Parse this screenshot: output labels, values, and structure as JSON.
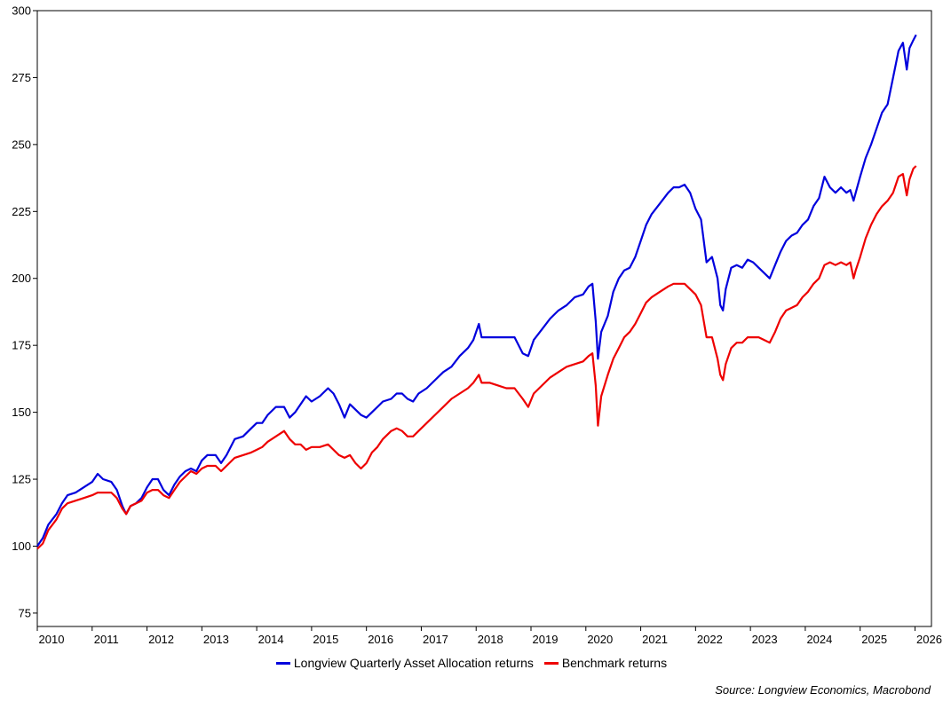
{
  "chart_data": {
    "type": "line",
    "title": "",
    "xlabel": "",
    "ylabel": "",
    "ylim": [
      70,
      300
    ],
    "yticks": [
      75,
      100,
      125,
      150,
      175,
      200,
      225,
      250,
      275,
      300
    ],
    "xlim": [
      2010,
      2026.3
    ],
    "xticks": [
      "2010",
      "2011",
      "2012",
      "2013",
      "2014",
      "2015",
      "2016",
      "2017",
      "2018",
      "2019",
      "2020",
      "2021",
      "2022",
      "2023",
      "2024",
      "2025",
      "2026"
    ],
    "grid": false,
    "legend_position": "bottom",
    "series": [
      {
        "name": "Longview Quarterly Asset Allocation returns",
        "color": "#0000dd",
        "points": [
          [
            2010.0,
            100
          ],
          [
            2010.1,
            103
          ],
          [
            2010.2,
            108
          ],
          [
            2010.35,
            112
          ],
          [
            2010.45,
            116
          ],
          [
            2010.55,
            119
          ],
          [
            2010.7,
            120
          ],
          [
            2010.85,
            122
          ],
          [
            2011.0,
            124
          ],
          [
            2011.1,
            127
          ],
          [
            2011.2,
            125
          ],
          [
            2011.35,
            124
          ],
          [
            2011.45,
            121
          ],
          [
            2011.55,
            115
          ],
          [
            2011.62,
            112
          ],
          [
            2011.7,
            115
          ],
          [
            2011.8,
            116
          ],
          [
            2011.9,
            118
          ],
          [
            2012.0,
            122
          ],
          [
            2012.1,
            125
          ],
          [
            2012.2,
            125
          ],
          [
            2012.3,
            121
          ],
          [
            2012.4,
            119
          ],
          [
            2012.5,
            123
          ],
          [
            2012.6,
            126
          ],
          [
            2012.7,
            128
          ],
          [
            2012.8,
            129
          ],
          [
            2012.9,
            128
          ],
          [
            2013.0,
            132
          ],
          [
            2013.1,
            134
          ],
          [
            2013.25,
            134
          ],
          [
            2013.35,
            131
          ],
          [
            2013.45,
            134
          ],
          [
            2013.6,
            140
          ],
          [
            2013.75,
            141
          ],
          [
            2013.9,
            144
          ],
          [
            2014.0,
            146
          ],
          [
            2014.1,
            146
          ],
          [
            2014.2,
            149
          ],
          [
            2014.35,
            152
          ],
          [
            2014.5,
            152
          ],
          [
            2014.6,
            148
          ],
          [
            2014.7,
            150
          ],
          [
            2014.8,
            153
          ],
          [
            2014.9,
            156
          ],
          [
            2015.0,
            154
          ],
          [
            2015.15,
            156
          ],
          [
            2015.3,
            159
          ],
          [
            2015.4,
            157
          ],
          [
            2015.5,
            153
          ],
          [
            2015.6,
            148
          ],
          [
            2015.7,
            153
          ],
          [
            2015.8,
            151
          ],
          [
            2015.9,
            149
          ],
          [
            2016.0,
            148
          ],
          [
            2016.1,
            150
          ],
          [
            2016.2,
            152
          ],
          [
            2016.3,
            154
          ],
          [
            2016.45,
            155
          ],
          [
            2016.55,
            157
          ],
          [
            2016.65,
            157
          ],
          [
            2016.75,
            155
          ],
          [
            2016.85,
            154
          ],
          [
            2016.95,
            157
          ],
          [
            2017.1,
            159
          ],
          [
            2017.25,
            162
          ],
          [
            2017.4,
            165
          ],
          [
            2017.55,
            167
          ],
          [
            2017.7,
            171
          ],
          [
            2017.85,
            174
          ],
          [
            2017.95,
            177
          ],
          [
            2018.05,
            183
          ],
          [
            2018.1,
            178
          ],
          [
            2018.25,
            178
          ],
          [
            2018.4,
            178
          ],
          [
            2018.55,
            178
          ],
          [
            2018.7,
            178
          ],
          [
            2018.85,
            172
          ],
          [
            2018.95,
            171
          ],
          [
            2019.05,
            177
          ],
          [
            2019.2,
            181
          ],
          [
            2019.35,
            185
          ],
          [
            2019.5,
            188
          ],
          [
            2019.65,
            190
          ],
          [
            2019.8,
            193
          ],
          [
            2019.95,
            194
          ],
          [
            2020.05,
            197
          ],
          [
            2020.12,
            198
          ],
          [
            2020.18,
            184
          ],
          [
            2020.22,
            170
          ],
          [
            2020.28,
            180
          ],
          [
            2020.4,
            186
          ],
          [
            2020.5,
            195
          ],
          [
            2020.6,
            200
          ],
          [
            2020.7,
            203
          ],
          [
            2020.8,
            204
          ],
          [
            2020.9,
            208
          ],
          [
            2021.0,
            214
          ],
          [
            2021.1,
            220
          ],
          [
            2021.2,
            224
          ],
          [
            2021.35,
            228
          ],
          [
            2021.5,
            232
          ],
          [
            2021.6,
            234
          ],
          [
            2021.7,
            234
          ],
          [
            2021.8,
            235
          ],
          [
            2021.9,
            232
          ],
          [
            2022.0,
            226
          ],
          [
            2022.1,
            222
          ],
          [
            2022.15,
            214
          ],
          [
            2022.2,
            206
          ],
          [
            2022.3,
            208
          ],
          [
            2022.4,
            200
          ],
          [
            2022.45,
            190
          ],
          [
            2022.5,
            188
          ],
          [
            2022.55,
            196
          ],
          [
            2022.65,
            204
          ],
          [
            2022.75,
            205
          ],
          [
            2022.85,
            204
          ],
          [
            2022.95,
            207
          ],
          [
            2023.05,
            206
          ],
          [
            2023.15,
            204
          ],
          [
            2023.25,
            202
          ],
          [
            2023.35,
            200
          ],
          [
            2023.45,
            205
          ],
          [
            2023.55,
            210
          ],
          [
            2023.65,
            214
          ],
          [
            2023.75,
            216
          ],
          [
            2023.85,
            217
          ],
          [
            2023.95,
            220
          ],
          [
            2024.05,
            222
          ],
          [
            2024.15,
            227
          ],
          [
            2024.25,
            230
          ],
          [
            2024.35,
            238
          ],
          [
            2024.45,
            234
          ],
          [
            2024.55,
            232
          ],
          [
            2024.65,
            234
          ],
          [
            2024.75,
            232
          ],
          [
            2024.82,
            233
          ],
          [
            2024.88,
            229
          ],
          [
            2024.92,
            232
          ],
          [
            2025.0,
            238
          ],
          [
            2025.1,
            245
          ],
          [
            2025.2,
            250
          ],
          [
            2025.3,
            256
          ],
          [
            2025.4,
            262
          ],
          [
            2025.5,
            265
          ],
          [
            2025.6,
            275
          ],
          [
            2025.7,
            285
          ],
          [
            2025.78,
            288
          ],
          [
            2025.85,
            278
          ],
          [
            2025.9,
            286
          ],
          [
            2025.97,
            289
          ],
          [
            2026.02,
            291
          ]
        ]
      },
      {
        "name": "Benchmark returns",
        "color": "#ee0000",
        "points": [
          [
            2010.0,
            99
          ],
          [
            2010.1,
            101
          ],
          [
            2010.2,
            106
          ],
          [
            2010.35,
            110
          ],
          [
            2010.45,
            114
          ],
          [
            2010.55,
            116
          ],
          [
            2010.7,
            117
          ],
          [
            2010.85,
            118
          ],
          [
            2011.0,
            119
          ],
          [
            2011.1,
            120
          ],
          [
            2011.2,
            120
          ],
          [
            2011.35,
            120
          ],
          [
            2011.45,
            118
          ],
          [
            2011.55,
            114
          ],
          [
            2011.62,
            112
          ],
          [
            2011.7,
            115
          ],
          [
            2011.8,
            116
          ],
          [
            2011.9,
            117
          ],
          [
            2012.0,
            120
          ],
          [
            2012.1,
            121
          ],
          [
            2012.2,
            121
          ],
          [
            2012.3,
            119
          ],
          [
            2012.4,
            118
          ],
          [
            2012.5,
            121
          ],
          [
            2012.6,
            124
          ],
          [
            2012.7,
            126
          ],
          [
            2012.8,
            128
          ],
          [
            2012.9,
            127
          ],
          [
            2013.0,
            129
          ],
          [
            2013.1,
            130
          ],
          [
            2013.25,
            130
          ],
          [
            2013.35,
            128
          ],
          [
            2013.45,
            130
          ],
          [
            2013.6,
            133
          ],
          [
            2013.75,
            134
          ],
          [
            2013.9,
            135
          ],
          [
            2014.0,
            136
          ],
          [
            2014.1,
            137
          ],
          [
            2014.2,
            139
          ],
          [
            2014.35,
            141
          ],
          [
            2014.5,
            143
          ],
          [
            2014.6,
            140
          ],
          [
            2014.7,
            138
          ],
          [
            2014.8,
            138
          ],
          [
            2014.9,
            136
          ],
          [
            2015.0,
            137
          ],
          [
            2015.15,
            137
          ],
          [
            2015.3,
            138
          ],
          [
            2015.4,
            136
          ],
          [
            2015.5,
            134
          ],
          [
            2015.6,
            133
          ],
          [
            2015.7,
            134
          ],
          [
            2015.8,
            131
          ],
          [
            2015.9,
            129
          ],
          [
            2016.0,
            131
          ],
          [
            2016.1,
            135
          ],
          [
            2016.2,
            137
          ],
          [
            2016.3,
            140
          ],
          [
            2016.45,
            143
          ],
          [
            2016.55,
            144
          ],
          [
            2016.65,
            143
          ],
          [
            2016.75,
            141
          ],
          [
            2016.85,
            141
          ],
          [
            2016.95,
            143
          ],
          [
            2017.1,
            146
          ],
          [
            2017.25,
            149
          ],
          [
            2017.4,
            152
          ],
          [
            2017.55,
            155
          ],
          [
            2017.7,
            157
          ],
          [
            2017.85,
            159
          ],
          [
            2017.95,
            161
          ],
          [
            2018.05,
            164
          ],
          [
            2018.1,
            161
          ],
          [
            2018.25,
            161
          ],
          [
            2018.4,
            160
          ],
          [
            2018.55,
            159
          ],
          [
            2018.7,
            159
          ],
          [
            2018.85,
            155
          ],
          [
            2018.95,
            152
          ],
          [
            2019.05,
            157
          ],
          [
            2019.2,
            160
          ],
          [
            2019.35,
            163
          ],
          [
            2019.5,
            165
          ],
          [
            2019.65,
            167
          ],
          [
            2019.8,
            168
          ],
          [
            2019.95,
            169
          ],
          [
            2020.05,
            171
          ],
          [
            2020.12,
            172
          ],
          [
            2020.18,
            160
          ],
          [
            2020.22,
            145
          ],
          [
            2020.28,
            156
          ],
          [
            2020.4,
            164
          ],
          [
            2020.5,
            170
          ],
          [
            2020.6,
            174
          ],
          [
            2020.7,
            178
          ],
          [
            2020.8,
            180
          ],
          [
            2020.9,
            183
          ],
          [
            2021.0,
            187
          ],
          [
            2021.1,
            191
          ],
          [
            2021.2,
            193
          ],
          [
            2021.35,
            195
          ],
          [
            2021.5,
            197
          ],
          [
            2021.6,
            198
          ],
          [
            2021.7,
            198
          ],
          [
            2021.8,
            198
          ],
          [
            2021.9,
            196
          ],
          [
            2022.0,
            194
          ],
          [
            2022.1,
            190
          ],
          [
            2022.15,
            184
          ],
          [
            2022.2,
            178
          ],
          [
            2022.3,
            178
          ],
          [
            2022.4,
            170
          ],
          [
            2022.45,
            164
          ],
          [
            2022.5,
            162
          ],
          [
            2022.55,
            168
          ],
          [
            2022.65,
            174
          ],
          [
            2022.75,
            176
          ],
          [
            2022.85,
            176
          ],
          [
            2022.95,
            178
          ],
          [
            2023.05,
            178
          ],
          [
            2023.15,
            178
          ],
          [
            2023.25,
            177
          ],
          [
            2023.35,
            176
          ],
          [
            2023.45,
            180
          ],
          [
            2023.55,
            185
          ],
          [
            2023.65,
            188
          ],
          [
            2023.75,
            189
          ],
          [
            2023.85,
            190
          ],
          [
            2023.95,
            193
          ],
          [
            2024.05,
            195
          ],
          [
            2024.15,
            198
          ],
          [
            2024.25,
            200
          ],
          [
            2024.35,
            205
          ],
          [
            2024.45,
            206
          ],
          [
            2024.55,
            205
          ],
          [
            2024.65,
            206
          ],
          [
            2024.75,
            205
          ],
          [
            2024.82,
            206
          ],
          [
            2024.88,
            200
          ],
          [
            2024.92,
            203
          ],
          [
            2025.0,
            208
          ],
          [
            2025.1,
            215
          ],
          [
            2025.2,
            220
          ],
          [
            2025.3,
            224
          ],
          [
            2025.4,
            227
          ],
          [
            2025.5,
            229
          ],
          [
            2025.6,
            232
          ],
          [
            2025.7,
            238
          ],
          [
            2025.78,
            239
          ],
          [
            2025.85,
            231
          ],
          [
            2025.9,
            237
          ],
          [
            2025.97,
            241
          ],
          [
            2026.02,
            242
          ]
        ]
      }
    ]
  },
  "legend": {
    "items": [
      {
        "label": "Longview Quarterly Asset Allocation returns",
        "color": "#0000dd"
      },
      {
        "label": "Benchmark returns",
        "color": "#ee0000"
      }
    ]
  },
  "source_note": "Source: Longview Economics, Macrobond"
}
